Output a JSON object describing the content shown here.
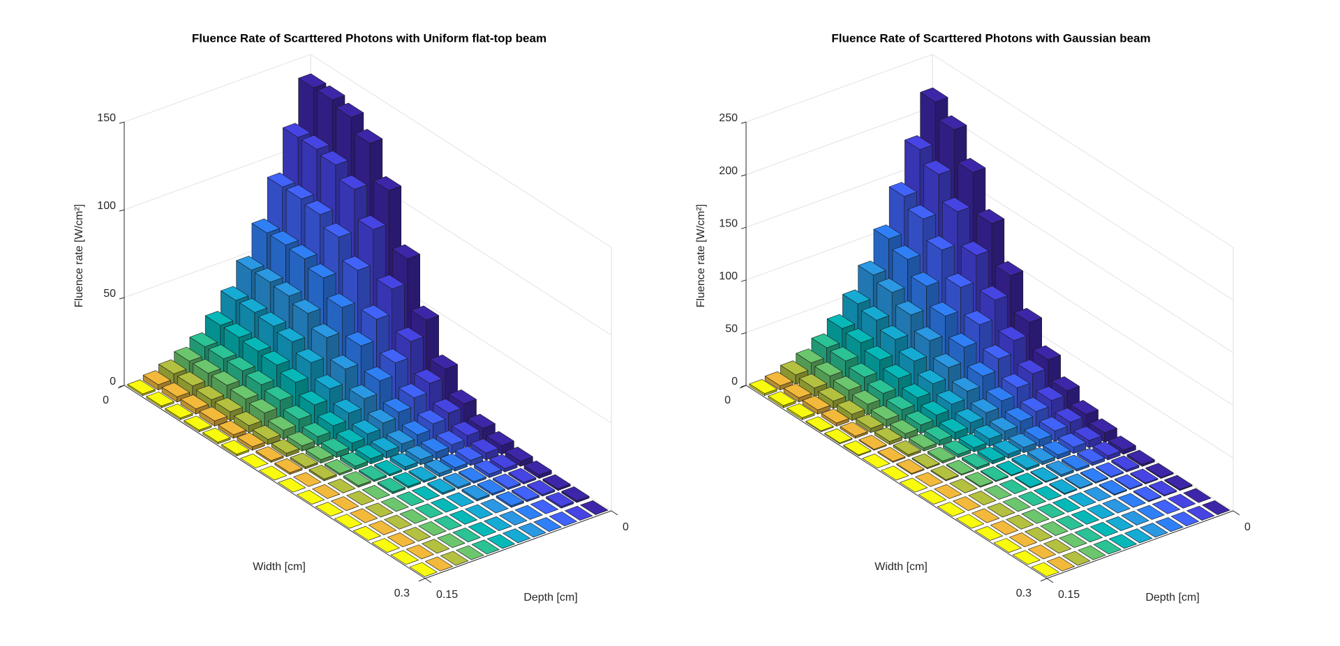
{
  "chart_data": [
    {
      "type": "bar3",
      "title": "Fluence Rate of Scarttered Photons with Uniform flat-top beam",
      "xlabel": "Width [cm]",
      "ylabel": "Depth [cm]",
      "zlabel": "Fluence rate [W/cm²]",
      "xlim": [
        0,
        0.3
      ],
      "xticks": [
        0,
        0.3
      ],
      "ylim": [
        0,
        0.15
      ],
      "yticks": [
        0,
        0.15
      ],
      "zlim": [
        0,
        150
      ],
      "zticks": [
        0,
        50,
        100,
        150
      ],
      "grid": true,
      "row_colors": [
        "#3e26a8",
        "#4744e4",
        "#4163fa",
        "#2f80f7",
        "#2a98e3",
        "#15abd4",
        "#06b9b8",
        "#2bc295",
        "#6bc66d",
        "#b4c03f",
        "#f2b93b",
        "#f9fb0e"
      ],
      "z": [
        [
          140,
          140,
          137,
          129,
          109,
          77,
          49,
          28,
          15,
          8,
          5,
          3,
          2,
          1,
          1,
          0
        ],
        [
          115,
          115,
          113,
          106,
          90,
          63,
          40,
          23,
          13,
          7,
          4,
          2,
          1,
          1,
          1,
          0
        ],
        [
          90,
          90,
          88,
          82,
          70,
          49,
          31,
          18,
          10,
          5,
          3,
          2,
          1,
          1,
          0,
          0
        ],
        [
          67,
          67,
          66,
          62,
          52,
          37,
          24,
          13,
          7,
          4,
          2,
          1,
          1,
          1,
          0,
          0
        ],
        [
          49,
          49,
          48,
          45,
          38,
          27,
          17,
          10,
          5,
          3,
          2,
          1,
          1,
          0,
          0,
          0
        ],
        [
          35,
          35,
          34,
          32,
          27,
          19,
          12,
          7,
          4,
          2,
          1,
          1,
          0,
          0,
          0,
          0
        ],
        [
          24,
          24,
          23,
          22,
          19,
          13,
          8,
          5,
          3,
          1,
          1,
          0,
          0,
          0,
          0,
          0
        ],
        [
          15,
          15,
          15,
          14,
          12,
          8,
          5,
          3,
          2,
          1,
          1,
          0,
          0,
          0,
          0,
          0
        ],
        [
          10,
          10,
          10,
          9,
          8,
          5,
          3,
          2,
          1,
          1,
          0,
          0,
          0,
          0,
          0,
          0
        ],
        [
          6,
          6,
          5,
          5,
          4,
          3,
          2,
          1,
          1,
          0,
          0,
          0,
          0,
          0,
          0,
          0
        ],
        [
          3,
          3,
          3,
          3,
          2,
          2,
          1,
          1,
          0,
          0,
          0,
          0,
          0,
          0,
          0,
          0
        ],
        [
          1,
          1,
          1,
          1,
          1,
          1,
          0,
          0,
          0,
          0,
          0,
          0,
          0,
          0,
          0,
          0
        ]
      ]
    },
    {
      "type": "bar3",
      "title": "Fluence Rate of Scarttered Photons with Gaussian beam",
      "xlabel": "Width [cm]",
      "ylabel": "Depth [cm]",
      "zlabel": "Fluence rate [W/cm²]",
      "xlim": [
        0,
        0.3
      ],
      "xticks": [
        0,
        0.3
      ],
      "ylim": [
        0,
        0.15
      ],
      "yticks": [
        0,
        0.15
      ],
      "zlim": [
        0,
        250
      ],
      "zticks": [
        0,
        50,
        100,
        150,
        200,
        250
      ],
      "grid": true,
      "row_colors": [
        "#3e26a8",
        "#4744e4",
        "#4163fa",
        "#2f80f7",
        "#2a98e3",
        "#15abd4",
        "#06b9b8",
        "#2bc295",
        "#6bc66d",
        "#b4c03f",
        "#f2b93b",
        "#f9fb0e"
      ],
      "z": [
        [
          220,
          205,
          176,
          139,
          101,
          68,
          44,
          26,
          15,
          9,
          4,
          2,
          1,
          1,
          0,
          0
        ],
        [
          180,
          168,
          144,
          114,
          83,
          56,
          36,
          22,
          13,
          7,
          4,
          2,
          1,
          1,
          0,
          0
        ],
        [
          141,
          131,
          113,
          89,
          65,
          44,
          28,
          17,
          10,
          6,
          3,
          1,
          1,
          1,
          0,
          0
        ],
        [
          106,
          98,
          84,
          67,
          49,
          33,
          21,
          13,
          7,
          4,
          2,
          1,
          1,
          0,
          0,
          0
        ],
        [
          77,
          72,
          62,
          49,
          35,
          24,
          15,
          9,
          5,
          3,
          2,
          1,
          0,
          0,
          0,
          0
        ],
        [
          55,
          51,
          44,
          35,
          25,
          17,
          11,
          7,
          4,
          2,
          1,
          1,
          0,
          0,
          0,
          0
        ],
        [
          37,
          35,
          30,
          24,
          17,
          12,
          7,
          4,
          3,
          1,
          1,
          0,
          0,
          0,
          0,
          0
        ],
        [
          24,
          23,
          19,
          15,
          11,
          8,
          5,
          3,
          2,
          1,
          0,
          0,
          0,
          0,
          0,
          0
        ],
        [
          15,
          14,
          12,
          10,
          7,
          5,
          3,
          2,
          1,
          1,
          0,
          0,
          0,
          0,
          0,
          0
        ],
        [
          9,
          8,
          7,
          6,
          4,
          3,
          2,
          1,
          1,
          0,
          0,
          0,
          0,
          0,
          0,
          0
        ],
        [
          4,
          4,
          4,
          3,
          2,
          1,
          1,
          1,
          0,
          0,
          0,
          0,
          0,
          0,
          0,
          0
        ],
        [
          2,
          2,
          2,
          1,
          1,
          1,
          0,
          0,
          0,
          0,
          0,
          0,
          0,
          0,
          0,
          0
        ]
      ]
    }
  ]
}
